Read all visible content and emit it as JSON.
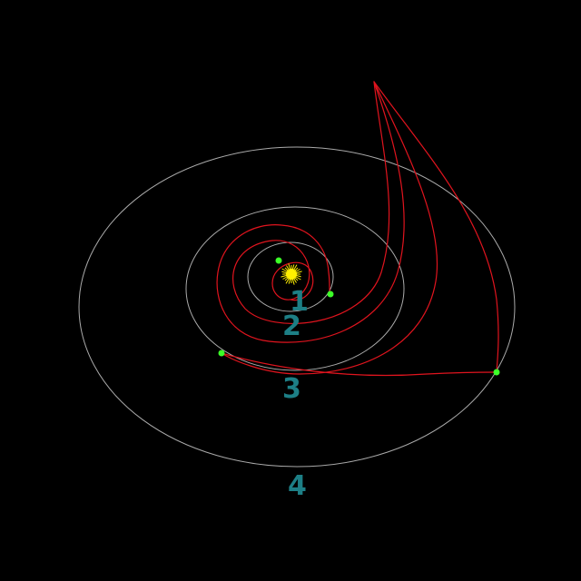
{
  "scene": {
    "background_color": "#000000",
    "orbit_color": "#c8c8c8",
    "trajectory_color": "#e0141e",
    "planet_color": "#3cff28",
    "label_color": "#1d7f86",
    "sun_color": "#fff000"
  },
  "orbits": [
    {
      "label": "1",
      "planet_icon": "planet-dot-icon"
    },
    {
      "label": "2",
      "planet_icon": "planet-dot-icon"
    },
    {
      "label": "3",
      "planet_icon": "planet-dot-icon"
    },
    {
      "label": "4",
      "planet_icon": "planet-dot-icon"
    }
  ],
  "sun": {
    "icon": "sun-icon"
  },
  "trajectory": {
    "icon": "trajectory-path"
  }
}
